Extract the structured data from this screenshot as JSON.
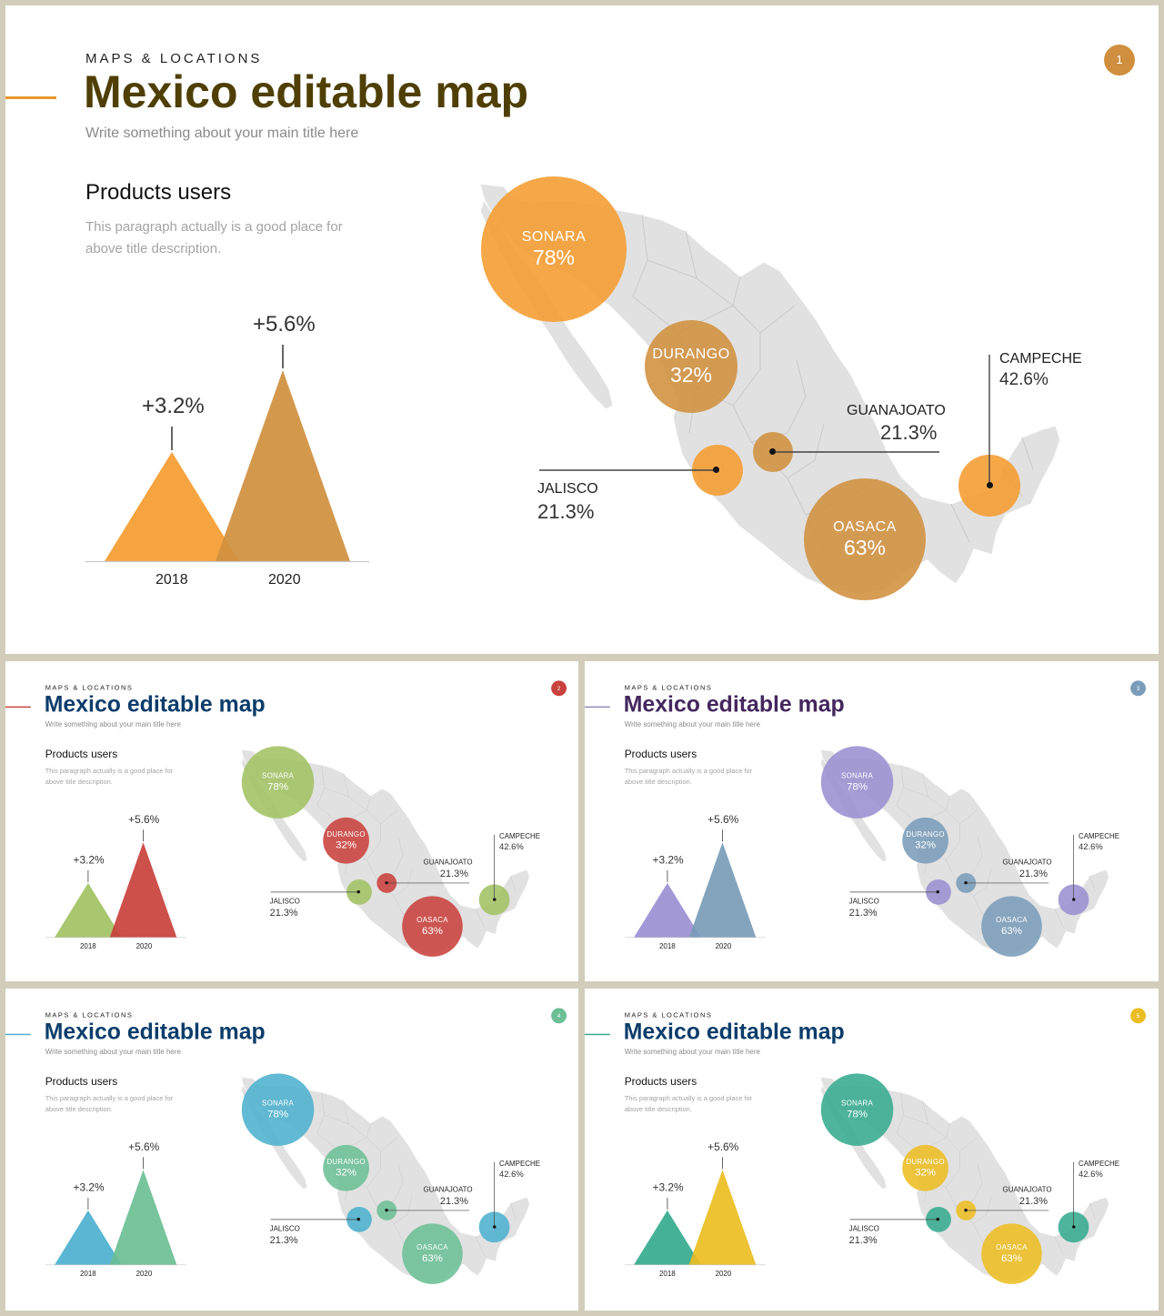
{
  "slides": [
    {
      "number": "1",
      "title_color": "#4f3f05",
      "primary": "#f59c2f",
      "secondary": "#d08f3e",
      "accent_line": "#e8982e",
      "badge": "#d08f3e",
      "bubbles": {
        "sonara": "#f59c2f",
        "durango": "#d08f3e",
        "guanajoato": "#d08f3e",
        "jalisco": "#f59c2f",
        "campeche": "#f59c2f",
        "oasaca": "#d08f3e"
      }
    },
    {
      "number": "2",
      "title_color": "#0c3d6b",
      "primary": "#a2c263",
      "secondary": "#c9413c",
      "accent_line": "#c9413c",
      "badge": "#c9413c",
      "bubbles": {
        "sonara": "#a2c263",
        "durango": "#c9413c",
        "guanajoato": "#c9413c",
        "jalisco": "#a2c263",
        "campeche": "#a2c263",
        "oasaca": "#c9413c"
      }
    },
    {
      "number": "3",
      "title_color": "#44275e",
      "primary": "#9a8fd1",
      "secondary": "#7a9cb8",
      "accent_line": "#8f88b8",
      "badge": "#7a9cb8",
      "bubbles": {
        "sonara": "#9a8fd1",
        "durango": "#7a9cb8",
        "guanajoato": "#7a9cb8",
        "jalisco": "#9a8fd1",
        "campeche": "#9a8fd1",
        "oasaca": "#7a9cb8"
      }
    },
    {
      "number": "4",
      "title_color": "#0c3d6b",
      "primary": "#4cb0ce",
      "secondary": "#6bbf95",
      "accent_line": "#4cb0ce",
      "badge": "#6bbf95",
      "bubbles": {
        "sonara": "#4cb0ce",
        "durango": "#6bbf95",
        "guanajoato": "#6bbf95",
        "jalisco": "#4cb0ce",
        "campeche": "#4cb0ce",
        "oasaca": "#6bbf95"
      }
    },
    {
      "number": "5",
      "title_color": "#0c3d6b",
      "primary": "#35ab8e",
      "secondary": "#ecbd22",
      "accent_line": "#35ab8e",
      "badge": "#ecbd22",
      "bubbles": {
        "sonara": "#35ab8e",
        "durango": "#ecbd22",
        "guanajoato": "#ecbd22",
        "jalisco": "#35ab8e",
        "campeche": "#35ab8e",
        "oasaca": "#ecbd22"
      }
    }
  ],
  "content": {
    "eyebrow": "MAPS & LOCATIONS",
    "title": "Mexico editable map",
    "subtitle": "Write something about your main title here",
    "products_heading": "Products users",
    "paragraph": "This paragraph actually is a good place for above title description."
  },
  "chart_data": {
    "type": "triangle-bar",
    "categories": [
      "2018",
      "2020"
    ],
    "values": [
      3.2,
      5.6
    ],
    "value_labels": [
      "+3.2%",
      "+5.6%"
    ]
  },
  "map_regions": [
    {
      "key": "sonara",
      "name": "SONARA",
      "value": "78%"
    },
    {
      "key": "durango",
      "name": "DURANGO",
      "value": "32%"
    },
    {
      "key": "oasaca",
      "name": "OASACA",
      "value": "63%"
    },
    {
      "key": "guanajoato",
      "name": "GUANAJOATO",
      "value": "21.3%"
    },
    {
      "key": "jalisco",
      "name": "JALISCO",
      "value": "21.3%"
    },
    {
      "key": "campeche",
      "name": "CAMPECHE",
      "value": "42.6%"
    }
  ]
}
